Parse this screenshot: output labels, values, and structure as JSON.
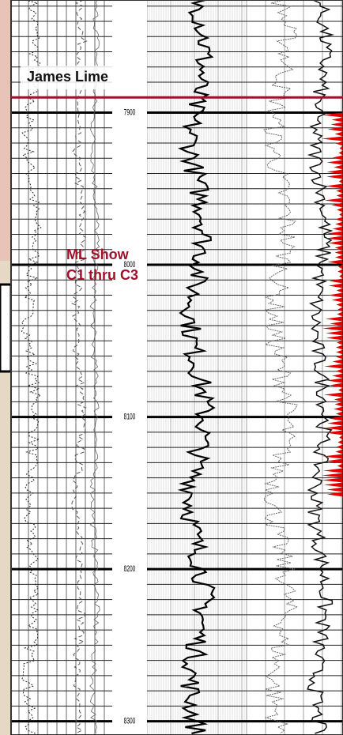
{
  "chart_data": {
    "type": "well-log",
    "ylim": [
      7826,
      8309
    ],
    "yticks": [
      7900,
      8000,
      8100,
      8200,
      8300
    ],
    "formation": {
      "name": "James Lime",
      "depth": 7890
    },
    "annotation": [
      "ML Show",
      "C1 thru C3"
    ]
  }
}
